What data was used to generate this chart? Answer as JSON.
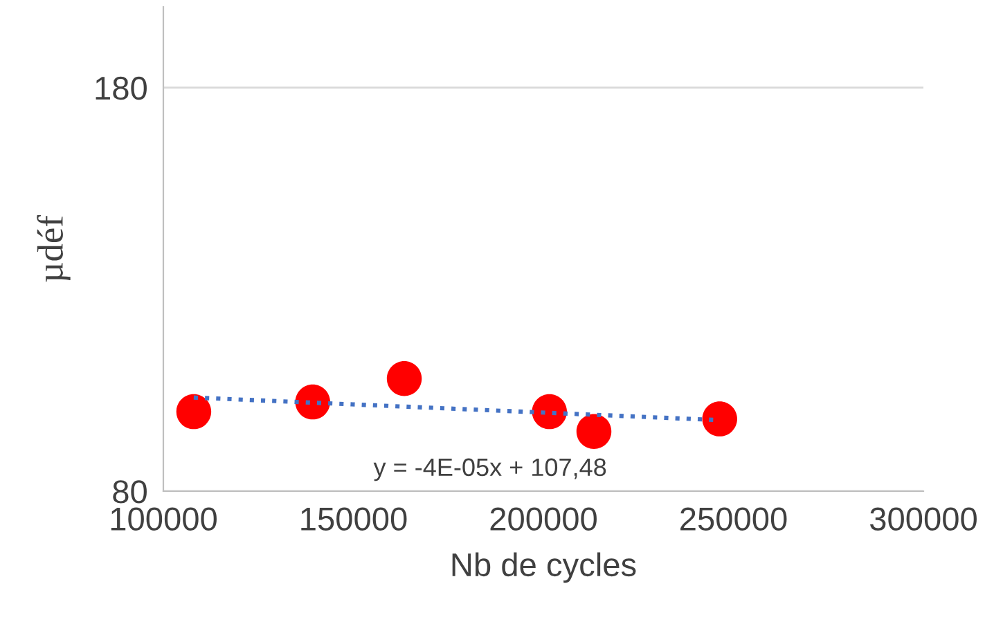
{
  "chart_data": {
    "type": "scatter",
    "xlabel": "Nb de cycles",
    "ylabel": "µdéf",
    "xlim": [
      100000,
      300000
    ],
    "xticks": [
      100000,
      150000,
      200000,
      250000,
      300000
    ],
    "ylim": [
      80,
      200
    ],
    "yticks": [
      80,
      180
    ],
    "grid": "y",
    "marker": "circle",
    "series": [
      {
        "color": "#ff0000",
        "x": [
          108000,
          139300,
          163400,
          201600,
          213300,
          246400
        ],
        "values": [
          99.7,
          102.1,
          107.9,
          99.7,
          94.8,
          97.9
        ]
      },
      {
        "type": "line",
        "color": "#4472c4",
        "line_style": "dotted",
        "marker": "none",
        "x": [
          108000,
          246400
        ],
        "values": [
          103.2,
          97.6
        ]
      }
    ],
    "annotations": [
      "y = -4E-05x + 107,48"
    ]
  }
}
